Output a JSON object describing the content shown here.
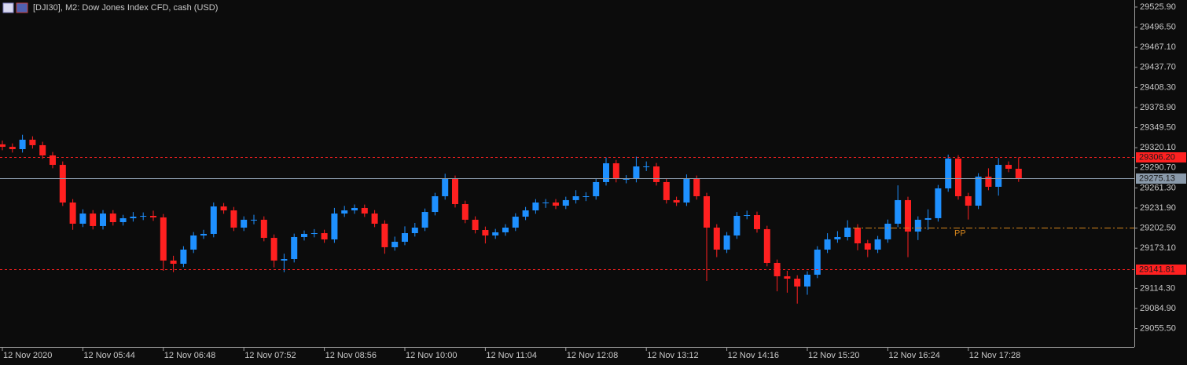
{
  "chart_data": {
    "type": "candlestick",
    "title": "[DJI30], M2:  Dow Jones Index CFD, cash (USD)",
    "up_color": "#1e90ff",
    "down_color": "#ff2020",
    "categories": [
      "12 Nov 2020",
      null,
      null,
      null,
      null,
      null,
      null,
      null,
      "12 Nov 05:44",
      null,
      null,
      null,
      null,
      null,
      null,
      null,
      "12 Nov 06:48",
      null,
      null,
      null,
      null,
      null,
      null,
      null,
      "12 Nov 07:52",
      null,
      null,
      null,
      null,
      null,
      null,
      null,
      "12 Nov 08:56",
      null,
      null,
      null,
      null,
      null,
      null,
      null,
      "12 Nov 10:00",
      null,
      null,
      null,
      null,
      null,
      null,
      null,
      "12 Nov 11:04",
      null,
      null,
      null,
      null,
      null,
      null,
      null,
      "12 Nov 12:08",
      null,
      null,
      null,
      null,
      null,
      null,
      null,
      "12 Nov 13:12",
      null,
      null,
      null,
      null,
      null,
      null,
      null,
      "12 Nov 14:16",
      null,
      null,
      null,
      null,
      null,
      null,
      null,
      "12 Nov 15:20",
      null,
      null,
      null,
      null,
      null,
      null,
      null,
      "12 Nov 16:24",
      null,
      null,
      null,
      null,
      null,
      null,
      null,
      "12 Nov 17:28",
      null,
      null,
      null,
      null,
      null
    ],
    "open": [
      29325.0,
      29321.4,
      29318.0,
      29331.8,
      29323.8,
      29308.8,
      29295.0,
      29239.9,
      29208.9,
      29223.8,
      29205.5,
      29223.8,
      29211.2,
      29216.9,
      29219.2,
      29220.4,
      29218.1,
      29155.0,
      29150.3,
      29171.0,
      29191.7,
      29194.0,
      29234.2,
      29228.4,
      29203.2,
      29214.7,
      29214.7,
      29188.2,
      29155.0,
      29157.2,
      29189.4,
      29194.0,
      29195.1,
      29185.9,
      29223.8,
      29228.4,
      29231.9,
      29223.8,
      29208.9,
      29174.5,
      29182.5,
      29195.1,
      29203.2,
      29226.1,
      29249.1,
      29274.4,
      29237.6,
      29214.7,
      29199.7,
      29191.7,
      29196.3,
      29203.2,
      29219.2,
      29228.4,
      29239.9,
      29239.9,
      29235.3,
      29243.4,
      29249.1,
      29249.1,
      29269.8,
      29297.3,
      29274.4,
      29274.4,
      29292.7,
      29292.7,
      29269.8,
      29243.4,
      29239.9,
      29274.4,
      29249.1,
      29203.2,
      29171.0,
      29191.7,
      29220.4,
      29221.5,
      29200.9,
      29151.5,
      29132.0,
      29128.5,
      29117.0,
      29134.3,
      29171.0,
      29186.0,
      29189.4,
      29203.2,
      29180.2,
      29171.0,
      29186.0,
      29208.9,
      29243.4,
      29197.4,
      29214.7,
      29217.0,
      29260.6,
      29304.2,
      29249.1,
      29235.3,
      29277.8,
      29262.9,
      29295.0,
      29289.3
    ],
    "high": [
      29330.4,
      29326.4,
      29339.0,
      29336.8,
      29328.8,
      29313.8,
      29300.0,
      29244.9,
      29230.0,
      29228.8,
      29228.8,
      29228.8,
      29221.9,
      29226.0,
      29225.4,
      29228.0,
      29223.1,
      29162.0,
      29176.0,
      29196.7,
      29200.0,
      29240.0,
      29239.2,
      29233.4,
      29219.7,
      29222.0,
      29219.7,
      29193.2,
      29165.0,
      29194.4,
      29199.0,
      29201.0,
      29200.1,
      29232.0,
      29235.0,
      29237.0,
      29236.9,
      29228.8,
      29213.9,
      29190.0,
      29205.0,
      29210.0,
      29231.1,
      29254.1,
      29282.0,
      29279.4,
      29242.6,
      29219.7,
      29204.7,
      29201.3,
      29208.2,
      29224.2,
      29233.4,
      29244.9,
      29245.0,
      29244.9,
      29248.4,
      29258.0,
      29255.0,
      29274.8,
      29306.0,
      29302.3,
      29280.0,
      29307.0,
      29300.0,
      29297.7,
      29274.8,
      29248.4,
      29281.0,
      29279.4,
      29254.1,
      29208.2,
      29196.7,
      29226.0,
      29228.0,
      29226.5,
      29205.9,
      29156.5,
      29140.0,
      29133.5,
      29139.3,
      29176.0,
      29195.0,
      29198.0,
      29214.0,
      29208.2,
      29185.2,
      29191.0,
      29215.0,
      29265.0,
      29248.4,
      29219.7,
      29230.0,
      29265.6,
      29310.0,
      29309.2,
      29254.1,
      29282.8,
      29290.0,
      29305.0,
      29300.0,
      29306.0
    ],
    "low": [
      29316.4,
      29313.0,
      29313.0,
      29318.8,
      29303.8,
      29290.0,
      29234.9,
      29200.0,
      29204.0,
      29200.5,
      29200.5,
      29206.2,
      29206.2,
      29212.0,
      29214.2,
      29213.1,
      29140.0,
      29138.0,
      29145.3,
      29166.0,
      29186.7,
      29189.0,
      29223.4,
      29198.2,
      29198.2,
      29208.0,
      29183.2,
      29145.0,
      29138.0,
      29152.2,
      29184.4,
      29189.0,
      29180.9,
      29180.9,
      29218.8,
      29223.4,
      29218.8,
      29203.9,
      29165.0,
      29169.5,
      29177.5,
      29190.1,
      29198.2,
      29221.1,
      29244.1,
      29232.6,
      29209.7,
      29194.7,
      29180.0,
      29186.7,
      29191.3,
      29198.2,
      29214.2,
      29223.4,
      29232.0,
      29230.3,
      29230.3,
      29238.4,
      29242.0,
      29244.1,
      29264.8,
      29269.4,
      29268.0,
      29269.4,
      29286.0,
      29264.8,
      29238.4,
      29234.9,
      29234.9,
      29244.1,
      29125.0,
      29160.0,
      29166.0,
      29186.7,
      29215.4,
      29195.9,
      29146.5,
      29110.0,
      29108.0,
      29092.0,
      29105.0,
      29129.3,
      29166.0,
      29181.0,
      29184.4,
      29170.0,
      29160.0,
      29166.0,
      29181.0,
      29203.9,
      29160.0,
      29185.0,
      29200.0,
      29212.0,
      29255.6,
      29244.1,
      29215.0,
      29230.3,
      29257.9,
      29250.0,
      29284.3,
      29270.1
    ],
    "close": [
      29321.4,
      29318.0,
      29331.8,
      29323.8,
      29308.8,
      29295.0,
      29239.9,
      29208.9,
      29223.8,
      29205.5,
      29223.8,
      29211.2,
      29216.9,
      29219.2,
      29220.4,
      29218.1,
      29155.0,
      29150.3,
      29171.0,
      29191.7,
      29194.0,
      29234.2,
      29228.4,
      29203.2,
      29214.7,
      29214.7,
      29188.2,
      29155.0,
      29157.2,
      29189.4,
      29194.0,
      29195.1,
      29185.9,
      29223.8,
      29228.4,
      29231.9,
      29223.8,
      29208.9,
      29174.5,
      29182.5,
      29195.1,
      29203.2,
      29226.1,
      29249.1,
      29274.4,
      29237.6,
      29214.7,
      29199.7,
      29191.7,
      29196.3,
      29203.2,
      29219.2,
      29228.4,
      29239.9,
      29239.9,
      29235.3,
      29243.4,
      29249.1,
      29249.1,
      29269.8,
      29297.3,
      29274.4,
      29274.4,
      29292.7,
      29292.7,
      29269.8,
      29243.4,
      29239.9,
      29274.4,
      29249.1,
      29203.2,
      29171.0,
      29191.7,
      29220.4,
      29221.5,
      29200.9,
      29151.5,
      29132.0,
      29128.5,
      29117.0,
      29134.3,
      29171.0,
      29186.0,
      29189.4,
      29203.2,
      29180.2,
      29171.0,
      29186.0,
      29208.9,
      29243.4,
      29197.4,
      29214.7,
      29217.0,
      29260.6,
      29304.2,
      29249.1,
      29235.3,
      29277.8,
      29262.9,
      29295.0,
      29289.3,
      29275.1
    ],
    "ylim": [
      29028.6,
      29536.2
    ],
    "yticks": [
      {
        "value": 29525.9,
        "label": "29525.90"
      },
      {
        "value": 29496.5,
        "label": "29496.50"
      },
      {
        "value": 29467.1,
        "label": "29467.10"
      },
      {
        "value": 29437.7,
        "label": "29437.70"
      },
      {
        "value": 29408.3,
        "label": "29408.30"
      },
      {
        "value": 29378.9,
        "label": "29378.90"
      },
      {
        "value": 29349.5,
        "label": "29349.50"
      },
      {
        "value": 29320.1,
        "label": "29320.10"
      },
      {
        "value": 29290.7,
        "label": "29290.70"
      },
      {
        "value": 29261.3,
        "label": "29261.30"
      },
      {
        "value": 29231.9,
        "label": "29231.90"
      },
      {
        "value": 29202.5,
        "label": "29202.50"
      },
      {
        "value": 29173.1,
        "label": "29173.10"
      },
      {
        "value": 29114.3,
        "label": "29114.30"
      },
      {
        "value": 29084.9,
        "label": "29084.90"
      },
      {
        "value": 29055.5,
        "label": "29055.50"
      }
    ],
    "levels": [
      {
        "value": 29306.2,
        "label": "29306.20",
        "color": "#ff2020",
        "style": "dashed"
      },
      {
        "value": 29275.13,
        "label": "29275.13",
        "color": "#8a9aab",
        "style": "solid"
      },
      {
        "value": 29141.81,
        "label": "29141.81",
        "color": "#ff2020",
        "style": "dashed"
      }
    ],
    "pivot": {
      "value": 29203.5,
      "label": "PP",
      "color": "#d4841c"
    }
  }
}
